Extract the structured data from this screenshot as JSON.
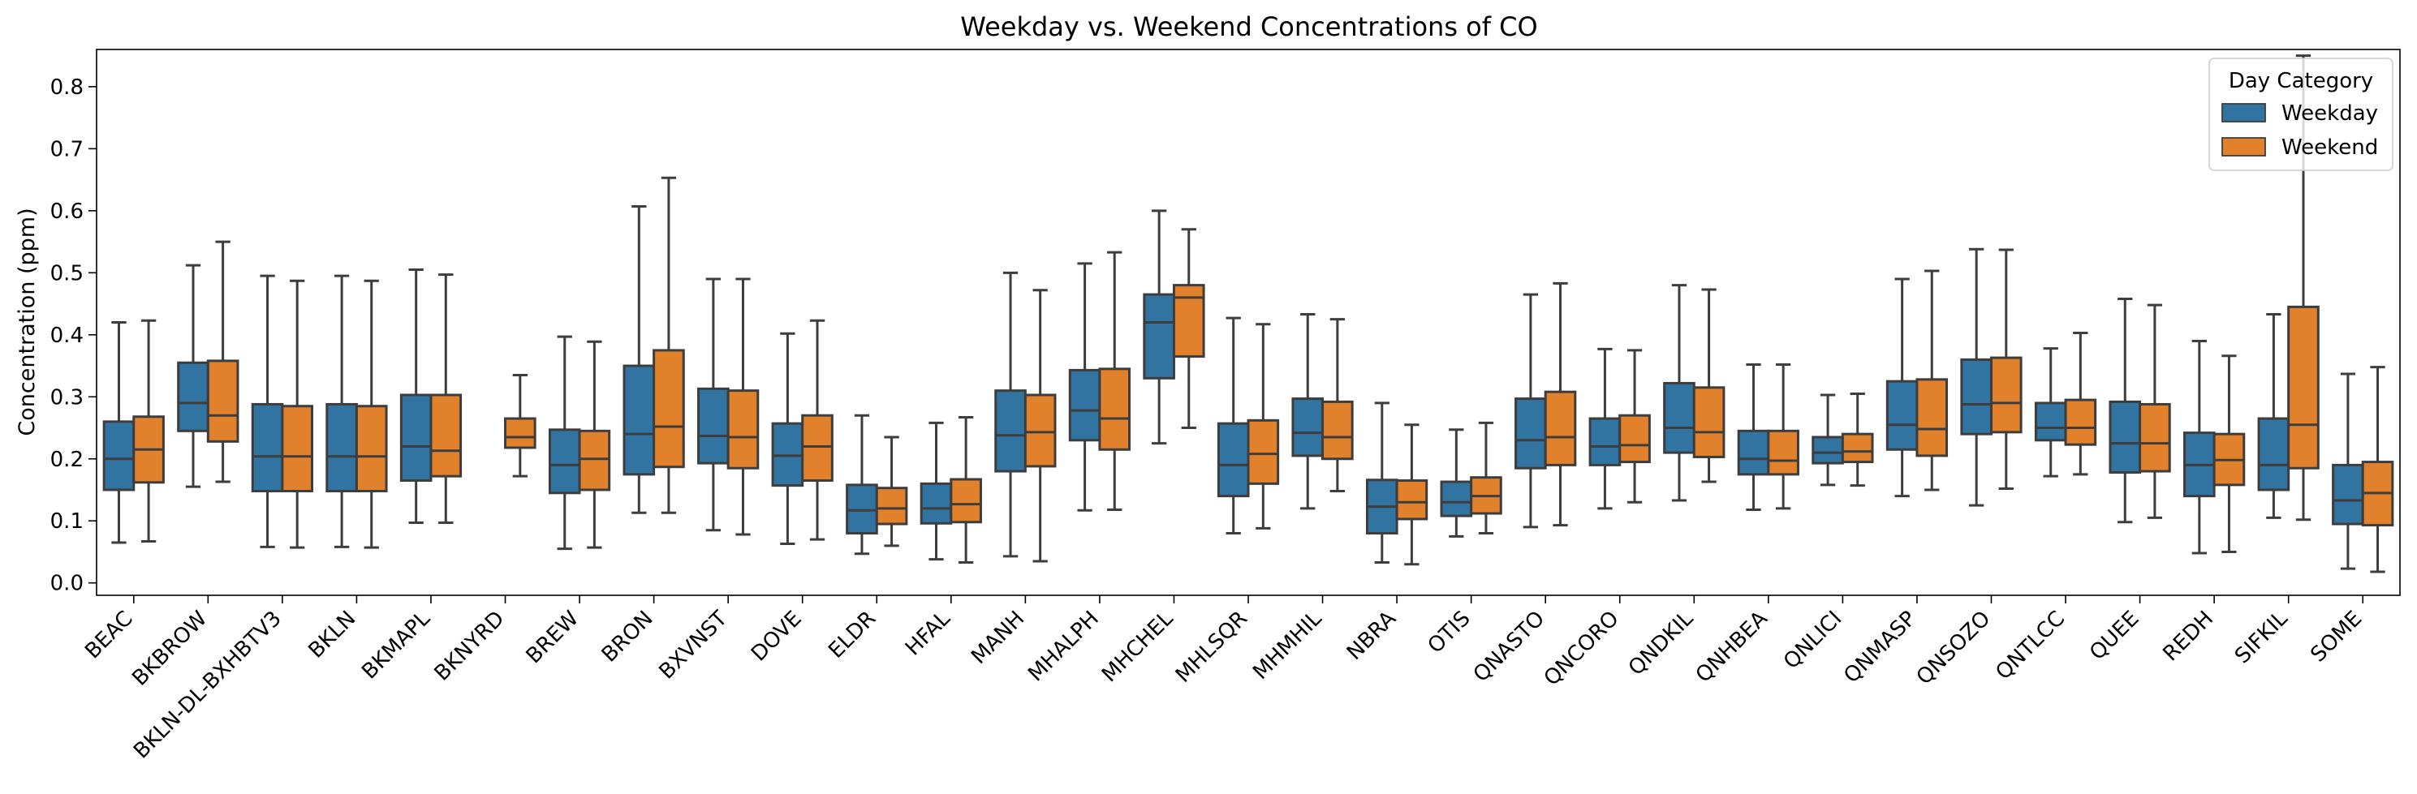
{
  "chart_data": {
    "type": "box",
    "title": "Weekday vs. Weekend Concentrations of CO",
    "xlabel": "",
    "ylabel": "Concentration (ppm)",
    "ylim": [
      -0.02,
      0.86
    ],
    "yticks": [
      "0.0",
      "0.1",
      "0.2",
      "0.3",
      "0.4",
      "0.5",
      "0.6",
      "0.7",
      "0.8"
    ],
    "grid": false,
    "legend": {
      "title": "Day Category",
      "position": "top-right"
    },
    "categories": [
      "BEAC",
      "BKBROW",
      "BKLN-DL-BXHBTV3",
      "BKLN",
      "BKMAPL",
      "BKNYRD",
      "BREW",
      "BRON",
      "BXVNST",
      "DOVE",
      "ELDR",
      "HFAL",
      "MANH",
      "MHALPH",
      "MHCHEL",
      "MHLSQR",
      "MHMHIL",
      "NBRA",
      "OTIS",
      "QNASTO",
      "QNCORO",
      "QNDKIL",
      "QNHBEA",
      "QNLICI",
      "QNMASP",
      "QNSOZO",
      "QNTLCC",
      "QUEE",
      "REDH",
      "SIFKIL",
      "SOME"
    ],
    "series": [
      {
        "name": "Weekday",
        "color": "#3274a1",
        "boxes": [
          [
            0.065,
            0.15,
            0.2,
            0.26,
            0.42
          ],
          [
            0.155,
            0.245,
            0.29,
            0.355,
            0.512
          ],
          [
            0.058,
            0.148,
            0.204,
            0.288,
            0.495
          ],
          [
            0.058,
            0.148,
            0.204,
            0.288,
            0.495
          ],
          [
            0.097,
            0.165,
            0.22,
            0.303,
            0.505
          ],
          null,
          [
            0.055,
            0.145,
            0.19,
            0.247,
            0.397
          ],
          [
            0.113,
            0.175,
            0.24,
            0.35,
            0.607
          ],
          [
            0.085,
            0.193,
            0.237,
            0.313,
            0.49
          ],
          [
            0.063,
            0.157,
            0.205,
            0.257,
            0.402
          ],
          [
            0.047,
            0.08,
            0.117,
            0.158,
            0.27
          ],
          [
            0.038,
            0.096,
            0.12,
            0.16,
            0.258
          ],
          [
            0.043,
            0.18,
            0.238,
            0.31,
            0.5
          ],
          [
            0.117,
            0.23,
            0.278,
            0.343,
            0.515
          ],
          [
            0.225,
            0.33,
            0.42,
            0.465,
            0.6
          ],
          [
            0.08,
            0.14,
            0.19,
            0.257,
            0.427
          ],
          [
            0.12,
            0.205,
            0.242,
            0.297,
            0.433
          ],
          [
            0.033,
            0.08,
            0.123,
            0.166,
            0.29
          ],
          [
            0.075,
            0.108,
            0.13,
            0.163,
            0.247
          ],
          [
            0.09,
            0.185,
            0.23,
            0.297,
            0.465
          ],
          [
            0.12,
            0.19,
            0.22,
            0.265,
            0.377
          ],
          [
            0.133,
            0.21,
            0.25,
            0.322,
            0.48
          ],
          [
            0.118,
            0.175,
            0.2,
            0.245,
            0.352
          ],
          [
            0.158,
            0.193,
            0.21,
            0.235,
            0.303
          ],
          [
            0.14,
            0.215,
            0.255,
            0.325,
            0.49
          ],
          [
            0.125,
            0.24,
            0.288,
            0.36,
            0.538
          ],
          [
            0.172,
            0.23,
            0.25,
            0.29,
            0.378
          ],
          [
            0.098,
            0.178,
            0.225,
            0.292,
            0.458
          ],
          [
            0.048,
            0.14,
            0.19,
            0.242,
            0.39
          ],
          [
            0.105,
            0.15,
            0.19,
            0.265,
            0.433
          ],
          [
            0.023,
            0.095,
            0.133,
            0.19,
            0.337
          ]
        ]
      },
      {
        "name": "Weekend",
        "color": "#e1812c",
        "boxes": [
          [
            0.067,
            0.162,
            0.215,
            0.268,
            0.423
          ],
          [
            0.163,
            0.228,
            0.27,
            0.358,
            0.55
          ],
          [
            0.057,
            0.148,
            0.204,
            0.285,
            0.487
          ],
          [
            0.057,
            0.148,
            0.204,
            0.285,
            0.487
          ],
          [
            0.097,
            0.172,
            0.213,
            0.303,
            0.497
          ],
          [
            0.172,
            0.218,
            0.235,
            0.265,
            0.335
          ],
          [
            0.057,
            0.15,
            0.2,
            0.245,
            0.389
          ],
          [
            0.113,
            0.187,
            0.252,
            0.375,
            0.653
          ],
          [
            0.078,
            0.185,
            0.235,
            0.31,
            0.49
          ],
          [
            0.07,
            0.165,
            0.22,
            0.27,
            0.423
          ],
          [
            0.06,
            0.095,
            0.12,
            0.153,
            0.235
          ],
          [
            0.033,
            0.098,
            0.127,
            0.167,
            0.267
          ],
          [
            0.035,
            0.188,
            0.243,
            0.303,
            0.472
          ],
          [
            0.118,
            0.215,
            0.265,
            0.345,
            0.533
          ],
          [
            0.25,
            0.365,
            0.46,
            0.48,
            0.57
          ],
          [
            0.088,
            0.16,
            0.208,
            0.262,
            0.417
          ],
          [
            0.148,
            0.2,
            0.235,
            0.292,
            0.425
          ],
          [
            0.03,
            0.103,
            0.13,
            0.165,
            0.255
          ],
          [
            0.08,
            0.112,
            0.14,
            0.17,
            0.258
          ],
          [
            0.093,
            0.19,
            0.235,
            0.308,
            0.483
          ],
          [
            0.13,
            0.195,
            0.222,
            0.27,
            0.375
          ],
          [
            0.163,
            0.203,
            0.243,
            0.315,
            0.473
          ],
          [
            0.12,
            0.175,
            0.197,
            0.245,
            0.352
          ],
          [
            0.157,
            0.195,
            0.212,
            0.24,
            0.305
          ],
          [
            0.15,
            0.205,
            0.248,
            0.328,
            0.503
          ],
          [
            0.152,
            0.243,
            0.29,
            0.363,
            0.537
          ],
          [
            0.175,
            0.223,
            0.25,
            0.295,
            0.403
          ],
          [
            0.105,
            0.18,
            0.225,
            0.288,
            0.448
          ],
          [
            0.05,
            0.158,
            0.198,
            0.24,
            0.366
          ],
          [
            0.102,
            0.185,
            0.255,
            0.445,
            0.85
          ],
          [
            0.018,
            0.093,
            0.145,
            0.195,
            0.348
          ]
        ]
      }
    ]
  }
}
